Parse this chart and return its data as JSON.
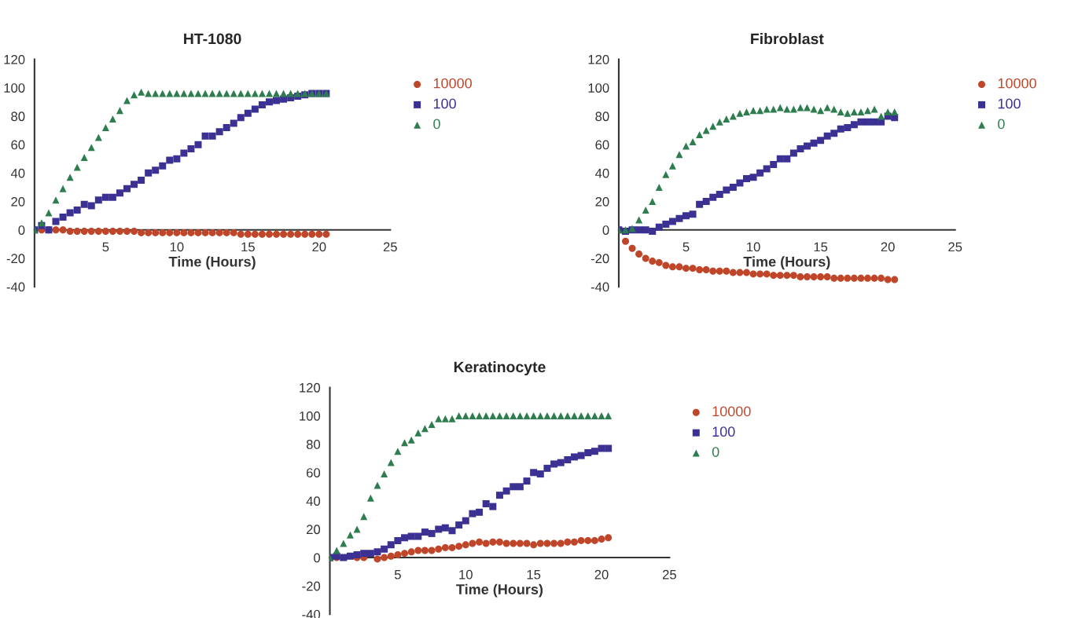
{
  "chart_data": [
    {
      "type": "scatter",
      "title": "HT-1080",
      "xlabel": "Time (Hours)",
      "xlim": [
        0,
        25
      ],
      "xticks": [
        5,
        10,
        15,
        20,
        25
      ],
      "ylim": [
        -40,
        120
      ],
      "yticks": [
        -40,
        -20,
        0,
        20,
        40,
        60,
        80,
        100,
        120
      ],
      "grid": false,
      "legend": "right",
      "x": [
        0,
        0.5,
        1,
        1.5,
        2,
        2.5,
        3,
        3.5,
        4,
        4.5,
        5,
        5.5,
        6,
        6.5,
        7,
        7.5,
        8,
        8.5,
        9,
        9.5,
        10,
        10.5,
        11,
        11.5,
        12,
        12.5,
        13,
        13.5,
        14,
        14.5,
        15,
        15.5,
        16,
        16.5,
        17,
        17.5,
        18,
        18.5,
        19,
        19.5,
        20,
        20.5
      ],
      "series": [
        {
          "name": "10000",
          "color": "#c0462a",
          "marker": "circle",
          "values": [
            0,
            0,
            0,
            0,
            0,
            -1,
            -1,
            -1,
            -1,
            -1,
            -1,
            -1,
            -1,
            -1,
            -1,
            -2,
            -2,
            -2,
            -2,
            -2,
            -2,
            -2,
            -2,
            -2,
            -2,
            -2,
            -2,
            -2,
            -2,
            -3,
            -3,
            -3,
            -3,
            -3,
            -3,
            -3,
            -3,
            -3,
            -3,
            -3,
            -3,
            -3
          ]
        },
        {
          "name": "100",
          "color": "#3a3193",
          "marker": "square",
          "values": [
            0,
            3,
            0,
            6,
            9,
            12,
            14,
            18,
            17,
            21,
            23,
            23,
            26,
            29,
            32,
            35,
            40,
            42,
            45,
            49,
            50,
            54,
            57,
            60,
            66,
            66,
            69,
            72,
            75,
            79,
            82,
            85,
            88,
            90,
            91,
            92,
            93,
            94,
            95,
            96,
            96,
            96
          ]
        },
        {
          "name": "0",
          "color": "#2e7d4f",
          "marker": "triangle",
          "values": [
            0,
            5,
            12,
            21,
            29,
            37,
            44,
            51,
            58,
            65,
            72,
            78,
            84,
            91,
            95,
            97,
            96,
            96,
            96,
            96,
            96,
            96,
            96,
            96,
            96,
            96,
            96,
            96,
            96,
            96,
            96,
            96,
            96,
            96,
            96,
            96,
            96,
            96,
            96,
            96,
            96,
            96
          ]
        }
      ]
    },
    {
      "type": "scatter",
      "title": "Fibroblast",
      "xlabel": "Time (Hours)",
      "xlim": [
        0,
        25
      ],
      "xticks": [
        5,
        10,
        15,
        20,
        25
      ],
      "ylim": [
        -40,
        120
      ],
      "yticks": [
        -40,
        -20,
        0,
        20,
        40,
        60,
        80,
        100,
        120
      ],
      "grid": false,
      "legend": "right",
      "x": [
        0,
        0.5,
        1,
        1.5,
        2,
        2.5,
        3,
        3.5,
        4,
        4.5,
        5,
        5.5,
        6,
        6.5,
        7,
        7.5,
        8,
        8.5,
        9,
        9.5,
        10,
        10.5,
        11,
        11.5,
        12,
        12.5,
        13,
        13.5,
        14,
        14.5,
        15,
        15.5,
        16,
        16.5,
        17,
        17.5,
        18,
        18.5,
        19,
        19.5,
        20,
        20.5
      ],
      "series": [
        {
          "name": "10000",
          "color": "#c0462a",
          "marker": "circle",
          "values": [
            0,
            -8,
            -13,
            -17,
            -20,
            -22,
            -23,
            -25,
            -26,
            -26,
            -27,
            -27,
            -28,
            -28,
            -29,
            -29,
            -29,
            -30,
            -30,
            -30,
            -31,
            -31,
            -31,
            -32,
            -32,
            -32,
            -32,
            -33,
            -33,
            -33,
            -33,
            -33,
            -34,
            -34,
            -34,
            -34,
            -34,
            -34,
            -34,
            -34,
            -35,
            -35
          ]
        },
        {
          "name": "100",
          "color": "#3a3193",
          "marker": "square",
          "values": [
            0,
            -1,
            0,
            0,
            0,
            -1,
            2,
            4,
            6,
            8,
            10,
            11,
            18,
            20,
            23,
            25,
            28,
            30,
            33,
            36,
            37,
            40,
            43,
            46,
            50,
            50,
            54,
            57,
            59,
            61,
            63,
            66,
            68,
            71,
            72,
            74,
            76,
            76,
            76,
            76,
            80,
            79
          ]
        },
        {
          "name": "0",
          "color": "#2e7d4f",
          "marker": "triangle",
          "values": [
            0,
            0,
            1,
            7,
            14,
            20,
            30,
            39,
            45,
            53,
            59,
            62,
            67,
            70,
            73,
            76,
            78,
            80,
            82,
            83,
            84,
            84,
            85,
            85,
            86,
            85,
            85,
            86,
            86,
            85,
            84,
            86,
            85,
            83,
            82,
            83,
            83,
            84,
            85,
            80,
            83,
            83
          ]
        }
      ]
    },
    {
      "type": "scatter",
      "title": "Keratinocyte",
      "xlabel": "Time (Hours)",
      "xlim": [
        0,
        25
      ],
      "xticks": [
        5,
        10,
        15,
        20,
        25
      ],
      "ylim": [
        -40,
        120
      ],
      "yticks": [
        -40,
        -20,
        0,
        20,
        40,
        60,
        80,
        100,
        120
      ],
      "grid": false,
      "legend": "right",
      "x": [
        0,
        0.5,
        1,
        1.5,
        2,
        2.5,
        3,
        3.5,
        4,
        4.5,
        5,
        5.5,
        6,
        6.5,
        7,
        7.5,
        8,
        8.5,
        9,
        9.5,
        10,
        10.5,
        11,
        11.5,
        12,
        12.5,
        13,
        13.5,
        14,
        14.5,
        15,
        15.5,
        16,
        16.5,
        17,
        17.5,
        18,
        18.5,
        19,
        19.5,
        20,
        20.5
      ],
      "series": [
        {
          "name": "10000",
          "color": "#c0462a",
          "marker": "circle",
          "values": [
            0,
            0,
            null,
            null,
            0,
            0,
            null,
            -1,
            0,
            1,
            2,
            3,
            4,
            5,
            5,
            5,
            6,
            7,
            7,
            8,
            9,
            10,
            11,
            10,
            11,
            11,
            10,
            10,
            10,
            10,
            9,
            10,
            10,
            10,
            10,
            11,
            11,
            12,
            12,
            12,
            13,
            14
          ]
        },
        {
          "name": "100",
          "color": "#3a3193",
          "marker": "square",
          "values": [
            0,
            1,
            0,
            1,
            2,
            3,
            3,
            4,
            6,
            9,
            12,
            14,
            15,
            15,
            18,
            17,
            20,
            21,
            19,
            23,
            26,
            31,
            32,
            38,
            36,
            44,
            47,
            50,
            50,
            54,
            60,
            59,
            63,
            66,
            67,
            69,
            71,
            72,
            74,
            75,
            77,
            77
          ]
        },
        {
          "name": "0",
          "color": "#2e7d4f",
          "marker": "triangle",
          "values": [
            0,
            5,
            10,
            16,
            20,
            29,
            42,
            51,
            59,
            67,
            75,
            81,
            83,
            88,
            91,
            94,
            98,
            98,
            98,
            100,
            100,
            100,
            100,
            100,
            100,
            100,
            100,
            100,
            100,
            100,
            100,
            100,
            100,
            100,
            100,
            100,
            100,
            100,
            100,
            100,
            100,
            100
          ]
        }
      ]
    }
  ]
}
